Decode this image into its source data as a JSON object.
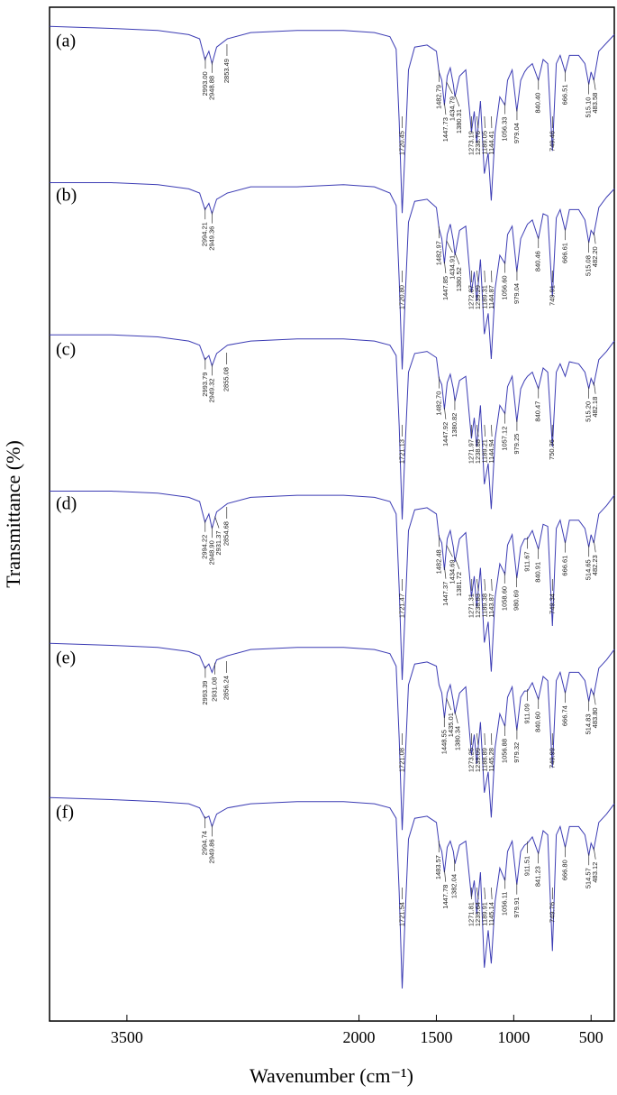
{
  "chart_data": {
    "type": "line",
    "xlabel": "Wavenumber (cm⁻¹)",
    "ylabel": "Transmittance (%)",
    "xlim": [
      4000,
      350
    ],
    "xticks": [
      3500,
      2000,
      1500,
      1000,
      500
    ],
    "ylim": [
      0,
      100
    ],
    "x": [
      4000,
      3600,
      3300,
      3100,
      3030,
      2995,
      2970,
      2950,
      2920,
      2850,
      2700,
      2400,
      2100,
      1900,
      1800,
      1760,
      1740,
      1721,
      1700,
      1680,
      1640,
      1560,
      1500,
      1483,
      1465,
      1448,
      1430,
      1410,
      1390,
      1380,
      1350,
      1310,
      1273,
      1255,
      1239,
      1215,
      1190,
      1165,
      1145,
      1120,
      1090,
      1057,
      1040,
      1010,
      980,
      955,
      930,
      911,
      880,
      841,
      810,
      780,
      750,
      725,
      700,
      667,
      640,
      580,
      540,
      515,
      500,
      483,
      450,
      400,
      350
    ],
    "series": [
      {
        "name": "(a)",
        "color": "#3c3cb4",
        "values": [
          96,
          95,
          94,
          92,
          90,
          80,
          84,
          78,
          86,
          90,
          93,
          94,
          94,
          93,
          91,
          85,
          50,
          6,
          40,
          75,
          86,
          87,
          84,
          74,
          70,
          58,
          72,
          76,
          68,
          62,
          72,
          75,
          45,
          55,
          40,
          60,
          25,
          35,
          12,
          45,
          62,
          58,
          70,
          75,
          55,
          70,
          74,
          76,
          78,
          70,
          80,
          78,
          36,
          78,
          82,
          74,
          82,
          82,
          78,
          68,
          74,
          70,
          84,
          88,
          92
        ],
        "peaks": [
          {
            "value": 2993.0,
            "label": "2993.00"
          },
          {
            "value": 2948.88,
            "label": "2948.88"
          },
          {
            "value": 2853.49,
            "label": "2853.49"
          },
          {
            "value": 1720.45,
            "label": "1720.45"
          },
          {
            "value": 1482.79,
            "label": "1482.79"
          },
          {
            "value": 1447.73,
            "label": "1447.73"
          },
          {
            "value": 1434.79,
            "label": "1434.79"
          },
          {
            "value": 1380.31,
            "label": "1380.31"
          },
          {
            "value": 1273.19,
            "label": "1273.19"
          },
          {
            "value": 1238.76,
            "label": "1238.76"
          },
          {
            "value": 1189.05,
            "label": "1189.05"
          },
          {
            "value": 1144.41,
            "label": "1144.41"
          },
          {
            "value": 1056.33,
            "label": "1056.33"
          },
          {
            "value": 979.04,
            "label": "979.04"
          },
          {
            "value": 840.4,
            "label": "840.40"
          },
          {
            "value": 749.46,
            "label": "749.46"
          },
          {
            "value": 666.51,
            "label": "666.51"
          },
          {
            "value": 515.1,
            "label": "515.10"
          },
          {
            "value": 483.58,
            "label": "483.58"
          }
        ]
      },
      {
        "name": "(b)",
        "color": "#3c3cb4",
        "values": [
          95,
          95,
          94,
          92,
          90,
          82,
          85,
          80,
          87,
          90,
          93,
          93,
          94,
          93,
          90,
          84,
          48,
          5,
          42,
          76,
          86,
          87,
          83,
          73,
          68,
          56,
          70,
          75,
          67,
          60,
          72,
          74,
          42,
          52,
          38,
          58,
          22,
          32,
          10,
          44,
          60,
          56,
          70,
          74,
          52,
          68,
          72,
          75,
          77,
          68,
          80,
          79,
          40,
          78,
          82,
          72,
          82,
          82,
          77,
          66,
          72,
          70,
          83,
          88,
          92
        ],
        "peaks": [
          {
            "value": 2994.21,
            "label": "2994.21"
          },
          {
            "value": 2949.36,
            "label": "2949.36"
          },
          {
            "value": 1720.8,
            "label": "1720.80"
          },
          {
            "value": 1482.97,
            "label": "1482.97"
          },
          {
            "value": 1447.85,
            "label": "1447.85"
          },
          {
            "value": 1434.91,
            "label": "1434.91"
          },
          {
            "value": 1380.52,
            "label": "1380.52"
          },
          {
            "value": 1272.87,
            "label": "1272.87"
          },
          {
            "value": 1239.29,
            "label": "1239.29"
          },
          {
            "value": 1189.31,
            "label": "1189.31"
          },
          {
            "value": 1144.87,
            "label": "1144.87"
          },
          {
            "value": 1056.6,
            "label": "1056.60"
          },
          {
            "value": 979.04,
            "label": "979.04"
          },
          {
            "value": 840.46,
            "label": "840.46"
          },
          {
            "value": 749.91,
            "label": "749.91"
          },
          {
            "value": 666.61,
            "label": "666.61"
          },
          {
            "value": 515.08,
            "label": "515.08"
          },
          {
            "value": 482.2,
            "label": "482.20"
          }
        ]
      },
      {
        "name": "(c)",
        "color": "#3c3cb4",
        "values": [
          96,
          96,
          95,
          93,
          91,
          84,
          86,
          81,
          87,
          91,
          93,
          94,
          94,
          93,
          91,
          86,
          52,
          7,
          45,
          78,
          87,
          88,
          85,
          75,
          72,
          60,
          73,
          77,
          70,
          64,
          74,
          76,
          46,
          56,
          42,
          62,
          24,
          34,
          12,
          46,
          62,
          58,
          71,
          76,
          54,
          70,
          74,
          76,
          78,
          70,
          80,
          78,
          42,
          78,
          82,
          76,
          83,
          82,
          78,
          70,
          75,
          72,
          84,
          88,
          93
        ],
        "peaks": [
          {
            "value": 2993.79,
            "label": "2993.79"
          },
          {
            "value": 2949.32,
            "label": "2949.32"
          },
          {
            "value": 2855.08,
            "label": "2855.08"
          },
          {
            "value": 1721.13,
            "label": "1721.13"
          },
          {
            "value": 1482.7,
            "label": "1482.70"
          },
          {
            "value": 1447.92,
            "label": "1447.92"
          },
          {
            "value": 1380.82,
            "label": "1380.82"
          },
          {
            "value": 1271.97,
            "label": "1271.97"
          },
          {
            "value": 1238.88,
            "label": "1238.88"
          },
          {
            "value": 1189.21,
            "label": "1189.21"
          },
          {
            "value": 1144.94,
            "label": "1144.94"
          },
          {
            "value": 1057.12,
            "label": "1057.12"
          },
          {
            "value": 979.25,
            "label": "979.25"
          },
          {
            "value": 840.47,
            "label": "840.47"
          },
          {
            "value": 750.36,
            "label": "750.36"
          },
          {
            "value": 515.2,
            "label": "515.20"
          },
          {
            "value": 482.18,
            "label": "482.18"
          }
        ]
      },
      {
        "name": "(d)",
        "color": "#3c3cb4",
        "values": [
          95,
          95,
          94,
          92,
          90,
          80,
          84,
          77,
          85,
          89,
          92,
          93,
          93,
          92,
          90,
          84,
          48,
          4,
          40,
          76,
          86,
          87,
          84,
          73,
          70,
          57,
          72,
          76,
          68,
          61,
          72,
          75,
          44,
          54,
          39,
          58,
          22,
          32,
          8,
          44,
          60,
          55,
          69,
          74,
          53,
          68,
          72,
          72,
          76,
          67,
          79,
          78,
          30,
          77,
          81,
          70,
          81,
          81,
          77,
          68,
          74,
          70,
          84,
          88,
          93
        ],
        "peaks": [
          {
            "value": 2994.22,
            "label": "2994.22"
          },
          {
            "value": 2948.9,
            "label": "2948.90"
          },
          {
            "value": 2931.37,
            "label": "2931.37"
          },
          {
            "value": 2854.68,
            "label": "2854.68"
          },
          {
            "value": 1721.47,
            "label": "1721.47"
          },
          {
            "value": 1482.48,
            "label": "1482.48"
          },
          {
            "value": 1447.37,
            "label": "1447.37"
          },
          {
            "value": 1434.69,
            "label": "1434.69"
          },
          {
            "value": 1381.72,
            "label": "1381.72"
          },
          {
            "value": 1271.31,
            "label": "1271.31"
          },
          {
            "value": 1238.83,
            "label": "1238.83"
          },
          {
            "value": 1189.38,
            "label": "1189.38"
          },
          {
            "value": 1143.87,
            "label": "1143.87"
          },
          {
            "value": 1058.6,
            "label": "1058.60"
          },
          {
            "value": 980.69,
            "label": "980.69"
          },
          {
            "value": 911.67,
            "label": "911.67"
          },
          {
            "value": 840.91,
            "label": "840.91"
          },
          {
            "value": 749.34,
            "label": "749.34"
          },
          {
            "value": 666.61,
            "label": "666.61"
          },
          {
            "value": 514.65,
            "label": "514.65"
          },
          {
            "value": 482.23,
            "label": "482.23"
          }
        ]
      },
      {
        "name": "(e)",
        "color": "#3c3cb4",
        "values": [
          96,
          95,
          94,
          92,
          90,
          84,
          86,
          82,
          88,
          90,
          93,
          94,
          94,
          93,
          91,
          85,
          50,
          6,
          42,
          76,
          86,
          87,
          85,
          76,
          72,
          60,
          72,
          76,
          68,
          62,
          72,
          75,
          42,
          52,
          38,
          58,
          24,
          34,
          12,
          46,
          62,
          56,
          70,
          75,
          54,
          70,
          73,
          73,
          77,
          69,
          80,
          78,
          36,
          78,
          82,
          72,
          82,
          82,
          78,
          68,
          74,
          71,
          84,
          88,
          93
        ],
        "peaks": [
          {
            "value": 2993.39,
            "label": "2993.39"
          },
          {
            "value": 2931.08,
            "label": "2931.08"
          },
          {
            "value": 2856.24,
            "label": "2856.24"
          },
          {
            "value": 1721.08,
            "label": "1721.08"
          },
          {
            "value": 1448.55,
            "label": "1448.55"
          },
          {
            "value": 1435.01,
            "label": "1435.01"
          },
          {
            "value": 1380.34,
            "label": "1380.34"
          },
          {
            "value": 1273.25,
            "label": "1273.25"
          },
          {
            "value": 1239.09,
            "label": "1239.09"
          },
          {
            "value": 1188.89,
            "label": "1188.89"
          },
          {
            "value": 1145.28,
            "label": "1145.28"
          },
          {
            "value": 1056.88,
            "label": "1056.88"
          },
          {
            "value": 979.32,
            "label": "979.32"
          },
          {
            "value": 911.09,
            "label": "911.09"
          },
          {
            "value": 840.6,
            "label": "840.60"
          },
          {
            "value": 749.99,
            "label": "749.99"
          },
          {
            "value": 666.74,
            "label": "666.74"
          },
          {
            "value": 514.83,
            "label": "514.83"
          },
          {
            "value": 483.8,
            "label": "483.80"
          }
        ]
      },
      {
        "name": "(f)",
        "color": "#3c3cb4",
        "values": [
          96,
          95,
          94,
          93,
          91,
          86,
          87,
          82,
          88,
          91,
          93,
          94,
          94,
          93,
          91,
          86,
          50,
          4,
          42,
          76,
          86,
          87,
          84,
          74,
          70,
          60,
          72,
          75,
          70,
          64,
          73,
          75,
          48,
          56,
          40,
          60,
          14,
          32,
          16,
          46,
          62,
          56,
          70,
          75,
          54,
          70,
          73,
          74,
          77,
          69,
          80,
          78,
          22,
          78,
          82,
          72,
          82,
          82,
          78,
          68,
          74,
          71,
          84,
          88,
          93
        ],
        "peaks": [
          {
            "value": 2994.74,
            "label": "2994.74"
          },
          {
            "value": 2949.86,
            "label": "2949.86"
          },
          {
            "value": 1721.54,
            "label": "1721.54"
          },
          {
            "value": 1483.57,
            "label": "1483.57"
          },
          {
            "value": 1447.78,
            "label": "1447.78"
          },
          {
            "value": 1382.04,
            "label": "1382.04"
          },
          {
            "value": 1271.81,
            "label": "1271.81"
          },
          {
            "value": 1239.64,
            "label": "1239.64"
          },
          {
            "value": 1189.91,
            "label": "1189.91"
          },
          {
            "value": 1145.14,
            "label": "1145.14"
          },
          {
            "value": 1056.11,
            "label": "1056.11"
          },
          {
            "value": 979.91,
            "label": "979.91"
          },
          {
            "value": 911.51,
            "label": "911.51"
          },
          {
            "value": 841.23,
            "label": "841.23"
          },
          {
            "value": 749.76,
            "label": "749.76"
          },
          {
            "value": 666.8,
            "label": "666.80"
          },
          {
            "value": 514.57,
            "label": "514.57"
          },
          {
            "value": 483.12,
            "label": "483.12"
          }
        ]
      }
    ]
  }
}
